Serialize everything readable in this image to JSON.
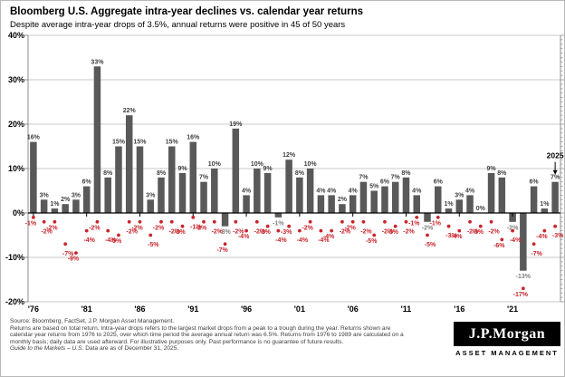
{
  "header": {
    "title": "Bloomberg U.S. Aggregate intra-year declines vs. calendar year returns",
    "subtitle": "Despite average intra-year drops of 3.5%, annual returns were positive in 45 of 50 years"
  },
  "chart_data": {
    "type": "bar",
    "x": [
      1976,
      1977,
      1978,
      1979,
      1980,
      1981,
      1982,
      1983,
      1984,
      1985,
      1986,
      1987,
      1988,
      1989,
      1990,
      1991,
      1992,
      1993,
      1994,
      1995,
      1996,
      1997,
      1998,
      1999,
      2000,
      2001,
      2002,
      2003,
      2004,
      2005,
      2006,
      2007,
      2008,
      2009,
      2010,
      2011,
      2012,
      2013,
      2014,
      2015,
      2016,
      2017,
      2018,
      2019,
      2020,
      2021,
      2022,
      2023,
      2024,
      2025
    ],
    "series": [
      {
        "name": "Calendar year return",
        "style": "bar",
        "values": [
          16,
          3,
          1,
          2,
          3,
          6,
          33,
          8,
          15,
          22,
          15,
          3,
          8,
          15,
          9,
          16,
          7,
          10,
          -3,
          19,
          4,
          10,
          9,
          -1,
          12,
          8,
          10,
          4,
          4,
          2,
          4,
          7,
          5,
          6,
          7,
          8,
          4,
          -2,
          6,
          1,
          3,
          4,
          0,
          9,
          8,
          -2,
          -13,
          6,
          1,
          7
        ]
      },
      {
        "name": "Intra-year decline",
        "style": "scatter",
        "values": [
          -1,
          -2,
          -2,
          -7,
          -9,
          -4,
          -2,
          -4,
          -5,
          -2,
          -2,
          -5,
          -2,
          -2,
          -3,
          -1,
          -2,
          -2,
          -7,
          -2,
          -4,
          -2,
          -3,
          -4,
          -3,
          -4,
          -2,
          -4,
          -4,
          -2,
          -2,
          -2,
          -5,
          -2,
          -3,
          -2,
          -1,
          -5,
          -1,
          -3,
          -4,
          -2,
          -3,
          -2,
          -6,
          -4,
          -17,
          -7,
          -4,
          -3
        ]
      }
    ],
    "ylim": [
      -20,
      40
    ],
    "yticks": [
      {
        "v": 40,
        "label": "40%"
      },
      {
        "v": 30,
        "label": "30%"
      },
      {
        "v": 20,
        "label": "20%"
      },
      {
        "v": 10,
        "label": "10%"
      },
      {
        "v": 0,
        "label": "0%"
      },
      {
        "v": -10,
        "label": "-10%"
      },
      {
        "v": -20,
        "label": "-20%"
      }
    ],
    "xticks": [
      {
        "year": 1976,
        "label": "'76"
      },
      {
        "year": 1981,
        "label": "'81"
      },
      {
        "year": 1986,
        "label": "'86"
      },
      {
        "year": 1991,
        "label": "'91"
      },
      {
        "year": 1996,
        "label": "'96"
      },
      {
        "year": 2001,
        "label": "'01"
      },
      {
        "year": 2006,
        "label": "'06"
      },
      {
        "year": 2011,
        "label": "'11"
      },
      {
        "year": 2016,
        "label": "'16"
      },
      {
        "year": 2021,
        "label": "'21"
      }
    ],
    "annotation": {
      "label": "2025",
      "year": 2025
    },
    "grid": true,
    "legend": "none",
    "colors": {
      "bar": "#595959",
      "bar_label": "#404040",
      "bar_label_negative": "#7f7f7f",
      "dot": "#c9262c",
      "dot_label": "#c9262c",
      "grid": "#c9c9c9",
      "zero_line": "#000000",
      "spine": "#8c8c8c"
    }
  },
  "footer": {
    "source": "Source: Bloomberg, FactSet, J.P. Morgan Asset Management.",
    "note_lines": [
      "Returns are based on total return. Intra-year drops refers to the largest market drops from a peak to a trough during the year. Returns shown are",
      "calendar year returns from 1976 to 2025, over which time period the average annual return was 6.5%. Returns from 1976 to 1989 are calculated on a",
      "monthly basis; daily data are used afterward. For illustrative purposes only. Past performance is no guarantee of future results."
    ],
    "guide_italic": "Guide to the Markets – U.S.",
    "guide_rest": " Data are as of December 31, 2025."
  },
  "logo": {
    "name": "J.P.Morgan",
    "division": "ASSET MANAGEMENT"
  }
}
